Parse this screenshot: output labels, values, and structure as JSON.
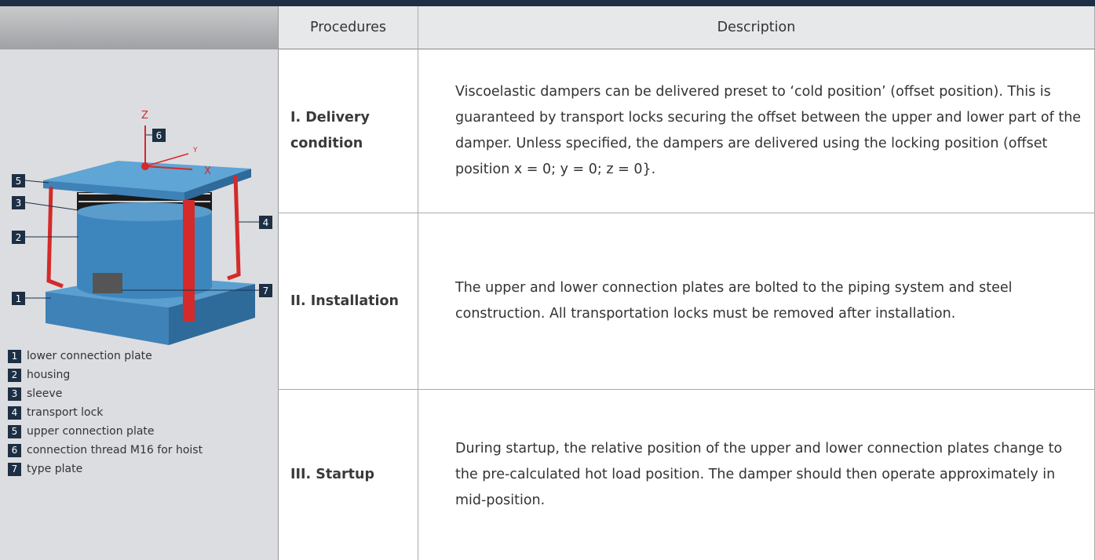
{
  "table": {
    "header": [
      "Procedures",
      "Description"
    ],
    "rows": [
      [
        "I. Delivery condition",
        "Viscoelastic dampers can be delivered preset to ‘cold position’ (offset position). This is guaranteed by transport locks securing the offset between the upper and lower part of the damper. Unless specified, the dampers are delivered using the locking position (offset position x = 0; y = 0; z = 0}."
      ],
      [
        "II. Installation",
        "The upper and lower connection plates are bolted to the piping system and steel construction. All transportation locks must be removed after installation."
      ],
      [
        "III. Startup",
        "During startup, the relative position of the upper and lower connection plates change to the pre-calculated hot load position. The damper should then operate approximately in mid-position."
      ]
    ]
  },
  "diagram": {
    "axes": [
      "Z",
      "X",
      "Y"
    ]
  },
  "legend": {
    "items": [
      {
        "number": "1",
        "text": "lower connection plate"
      },
      {
        "number": "2",
        "text": "housing"
      },
      {
        "number": "3",
        "text": "sleeve"
      },
      {
        "number": "4",
        "text": "transport lock"
      },
      {
        "number": "5",
        "text": "upper connection plate"
      },
      {
        "number": "6",
        "text": "connection thread M16 for hoist"
      },
      {
        "number": "7",
        "text": "type plate"
      }
    ]
  }
}
